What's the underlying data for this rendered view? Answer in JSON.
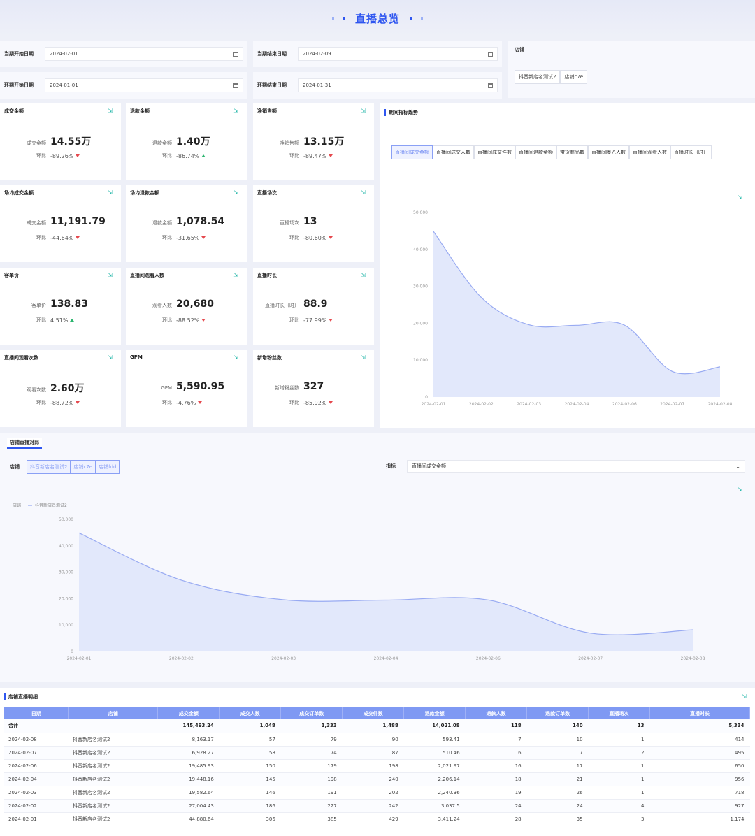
{
  "header": {
    "title": "直播总览"
  },
  "filters": {
    "cur_start_label": "当期开始日期",
    "cur_start_value": "2024-02-01",
    "cur_end_label": "当期结束日期",
    "cur_end_value": "2024-02-09",
    "prev_start_label": "环期开始日期",
    "prev_start_value": "2024-01-01",
    "prev_end_label": "环期结束日期",
    "prev_end_value": "2024-01-31",
    "store_label": "店铺",
    "stores": [
      "抖音新店名测试2",
      "店铺c7e"
    ]
  },
  "kpis": [
    {
      "title": "成交金额",
      "key": "成交金额",
      "value": "14.55万",
      "cmp": "环比",
      "pct": "-89.26%",
      "dir": "down"
    },
    {
      "title": "退款金额",
      "key": "退款金额",
      "value": "1.40万",
      "cmp": "环比",
      "pct": "-86.74%",
      "dir": "up"
    },
    {
      "title": "净销售额",
      "key": "净销售额",
      "value": "13.15万",
      "cmp": "环比",
      "pct": "-89.47%",
      "dir": "down"
    },
    {
      "title": "场均成交金额",
      "key": "成交金额",
      "value": "11,191.79",
      "cmp": "环比",
      "pct": "-44.64%",
      "dir": "down"
    },
    {
      "title": "场均退款金额",
      "key": "退款金额",
      "value": "1,078.54",
      "cmp": "环比",
      "pct": "-31.65%",
      "dir": "down"
    },
    {
      "title": "直播场次",
      "key": "直播场次",
      "value": "13",
      "cmp": "环比",
      "pct": "-80.60%",
      "dir": "down"
    },
    {
      "title": "客单价",
      "key": "客单价",
      "value": "138.83",
      "cmp": "环比",
      "pct": "4.51%",
      "dir": "up"
    },
    {
      "title": "直播间观看人数",
      "key": "观看人数",
      "value": "20,680",
      "cmp": "环比",
      "pct": "-88.52%",
      "dir": "down"
    },
    {
      "title": "直播时长",
      "key": "直播时长（时）",
      "value": "88.9",
      "cmp": "环比",
      "pct": "-77.99%",
      "dir": "down"
    },
    {
      "title": "直播间观看次数",
      "key": "观看次数",
      "value": "2.60万",
      "cmp": "环比",
      "pct": "-88.72%",
      "dir": "down"
    },
    {
      "title": "GPM",
      "key": "GPM",
      "value": "5,590.95",
      "cmp": "环比",
      "pct": "-4.76%",
      "dir": "down"
    },
    {
      "title": "新增粉丝数",
      "key": "新增粉丝数",
      "value": "327",
      "cmp": "环比",
      "pct": "-85.92%",
      "dir": "down"
    }
  ],
  "trend": {
    "title": "期间指标趋势",
    "tabs": [
      "直播间成交金额",
      "直播间成交人数",
      "直播间成交件数",
      "直播间退款金额",
      "带货商品数",
      "直播间曝光人数",
      "直播间观看人数",
      "直播时长（时）"
    ],
    "active_tab": 0
  },
  "compare": {
    "title": "店铺直播对比",
    "store_label": "店铺",
    "stores": [
      "抖音新店名测试2",
      "店铺c7e",
      "店铺fdd"
    ],
    "metric_label": "指标",
    "metric_value": "直播间成交金额",
    "legend_label": "店铺",
    "legend_series": "抖音新店名测试2"
  },
  "chart_data": [
    {
      "type": "area",
      "x": [
        "2024-02-01",
        "2024-02-02",
        "2024-02-03",
        "2024-02-04",
        "2024-02-06",
        "2024-02-07",
        "2024-02-08"
      ],
      "y": [
        44880.64,
        27004.43,
        19582.64,
        19448.16,
        19485.93,
        6928.27,
        8163.17
      ],
      "yticks": [
        "0",
        "10,000",
        "20,000",
        "30,000",
        "40,000",
        "50,000"
      ],
      "ylim": [
        0,
        50000
      ]
    },
    {
      "type": "area",
      "x": [
        "2024-02-01",
        "2024-02-02",
        "2024-02-03",
        "2024-02-04",
        "2024-02-06",
        "2024-02-07",
        "2024-02-08"
      ],
      "series": [
        {
          "name": "抖音新店名测试2",
          "values": [
            44880.64,
            27004.43,
            19582.64,
            19448.16,
            19485.93,
            6928.27,
            8163.17
          ]
        }
      ],
      "yticks": [
        "0",
        "10,000",
        "20,000",
        "30,000",
        "40,000",
        "50,000"
      ],
      "ylim": [
        0,
        50000
      ]
    }
  ],
  "detail": {
    "title": "店铺直播明细",
    "columns": [
      "日期",
      "店铺",
      "成交金额",
      "成交人数",
      "成交订单数",
      "成交件数",
      "退款金额",
      "退款人数",
      "退款订单数",
      "直播场次",
      "直播时长"
    ],
    "total": [
      "合计",
      "",
      "145,493.24",
      "1,048",
      "1,333",
      "1,488",
      "14,021.08",
      "118",
      "140",
      "13",
      "5,334"
    ],
    "rows": [
      [
        "2024-02-08",
        "抖音新店名测试2",
        "8,163.17",
        "57",
        "79",
        "90",
        "593.41",
        "7",
        "10",
        "1",
        "414"
      ],
      [
        "2024-02-07",
        "抖音新店名测试2",
        "6,928.27",
        "58",
        "74",
        "87",
        "510.46",
        "6",
        "7",
        "2",
        "495"
      ],
      [
        "2024-02-06",
        "抖音新店名测试2",
        "19,485.93",
        "150",
        "179",
        "198",
        "2,021.97",
        "16",
        "17",
        "1",
        "650"
      ],
      [
        "2024-02-04",
        "抖音新店名测试2",
        "19,448.16",
        "145",
        "198",
        "240",
        "2,206.14",
        "18",
        "21",
        "1",
        "956"
      ],
      [
        "2024-02-03",
        "抖音新店名测试2",
        "19,582.64",
        "146",
        "191",
        "202",
        "2,240.36",
        "19",
        "26",
        "1",
        "718"
      ],
      [
        "2024-02-02",
        "抖音新店名测试2",
        "27,004.43",
        "186",
        "227",
        "242",
        "3,037.5",
        "24",
        "24",
        "4",
        "927"
      ],
      [
        "2024-02-01",
        "抖音新店名测试2",
        "44,880.64",
        "306",
        "385",
        "429",
        "3,411.24",
        "28",
        "35",
        "3",
        "1,174"
      ]
    ]
  }
}
